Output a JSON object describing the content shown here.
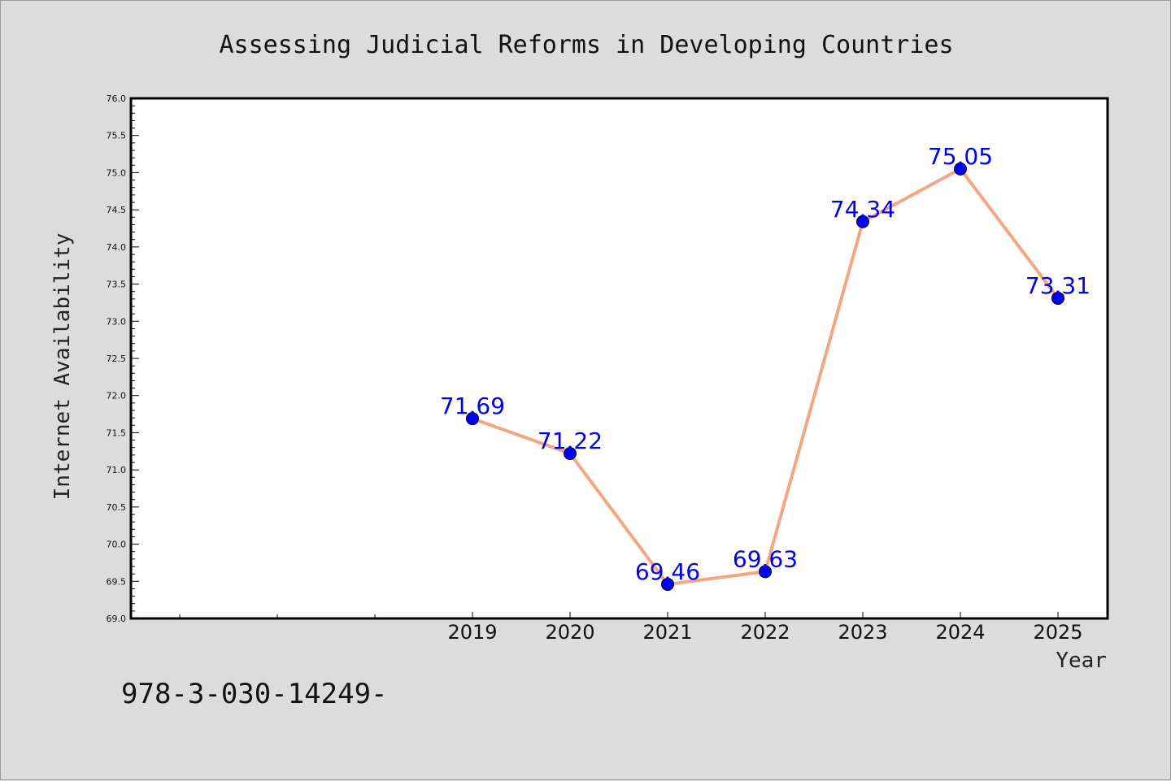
{
  "chart_data": {
    "type": "line",
    "title": "Assessing Judicial Reforms in Developing Countries",
    "xlabel": "Year",
    "ylabel": "Internet Availability",
    "ylim": [
      69.0,
      76.0
    ],
    "yticks": [
      "69.0",
      "69.5",
      "70.0",
      "70.5",
      "71.0",
      "71.5",
      "72.0",
      "72.5",
      "73.0",
      "73.5",
      "74.0",
      "74.5",
      "75.0",
      "75.5",
      "76.0"
    ],
    "categories": [
      "2019",
      "2020",
      "2021",
      "2022",
      "2023",
      "2024",
      "2025"
    ],
    "values": [
      71.69,
      71.22,
      69.46,
      69.63,
      74.34,
      75.05,
      73.31
    ],
    "data_labels": [
      "71.69",
      "71.22",
      "69.46",
      "69.63",
      "74.34",
      "75.05",
      "73.31"
    ],
    "line_color": "#f4a582",
    "marker_color": "#0000ff",
    "label_color": "#0000ee",
    "grid": false,
    "legend": "none"
  },
  "footer_text": "978-3-030-14249-"
}
